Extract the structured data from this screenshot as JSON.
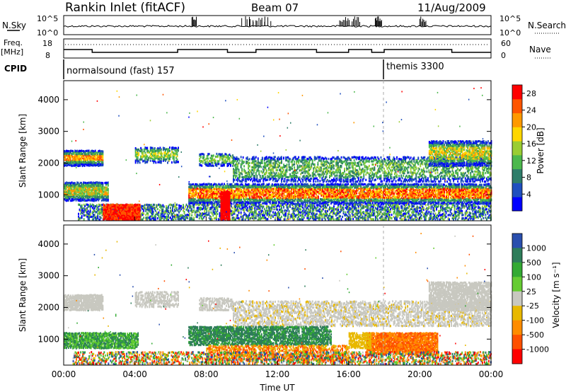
{
  "header": {
    "station": "Rankin Inlet (fitACF)",
    "beam": "Beam 07",
    "date": "11/Aug/2009"
  },
  "nsky_panel": {
    "left_label": "N.Sky",
    "right_label": "N.Search",
    "left_ticks": [
      "10^5",
      "10^0"
    ],
    "right_ticks": [
      "10^5",
      "10^0"
    ]
  },
  "freq_panel": {
    "left_label": "Freq.",
    "unit_label": "[MHz]",
    "right_label": "Nave",
    "left_ticks": [
      "18",
      "8"
    ],
    "right_ticks": [
      "60",
      "0"
    ]
  },
  "cpid_panel": {
    "label": "CPID",
    "programs": [
      {
        "name": "normalsound (fast) 157",
        "start_hour": 0
      },
      {
        "name": "themis 3300",
        "start_hour": 18
      }
    ]
  },
  "colors": {
    "power": [
      "#0000ff",
      "#1f4fbf",
      "#2e7d6a",
      "#4cb84c",
      "#9acd32",
      "#ffd700",
      "#ff9900",
      "#ff5500",
      "#ff0000"
    ],
    "velocity": [
      "#2a4fae",
      "#2e7d5a",
      "#33aa33",
      "#66cc33",
      "#c8c8c0",
      "#e8b800",
      "#ff8c00",
      "#ff5000",
      "#ff0000"
    ]
  },
  "chart_data": [
    {
      "type": "heatmap",
      "title": "Power",
      "ylabel": "Slant Range [km]",
      "xlabel": "Time UT",
      "x_ticks": [
        "00:00",
        "04:00",
        "08:00",
        "12:00",
        "16:00",
        "20:00",
        "00:00"
      ],
      "y_ticks": [
        1000,
        2000,
        3000,
        4000
      ],
      "xlim_hours": [
        0,
        24
      ],
      "ylim": [
        180,
        4600
      ],
      "colorbar": {
        "label": "Power [dB]",
        "ticks": [
          4,
          8,
          12,
          16,
          20,
          24,
          28
        ],
        "range": [
          0,
          30
        ]
      }
    },
    {
      "type": "heatmap",
      "title": "Velocity",
      "ylabel": "Slant Range [km]",
      "xlabel": "Time UT",
      "x_ticks": [
        "00:00",
        "04:00",
        "08:00",
        "12:00",
        "16:00",
        "20:00",
        "00:00"
      ],
      "y_ticks": [
        1000,
        2000,
        3000,
        4000
      ],
      "xlim_hours": [
        0,
        24
      ],
      "ylim": [
        180,
        4600
      ],
      "colorbar": {
        "label": "Velocity [m s⁻¹]",
        "ticks": [
          1000,
          500,
          100,
          25,
          -25,
          -100,
          -500,
          -1000
        ]
      }
    }
  ]
}
